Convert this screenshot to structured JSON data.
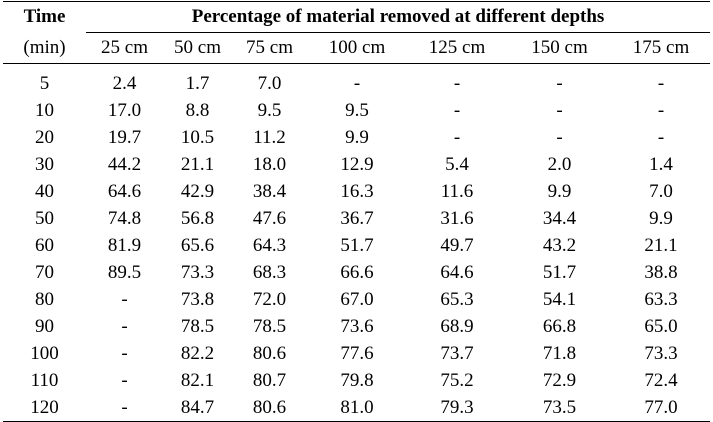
{
  "table": {
    "time_header": "Time",
    "time_unit": "(min)",
    "group_header": "Percentage of material removed at different depths",
    "depths": [
      "25 cm",
      "50 cm",
      "75 cm",
      "100 cm",
      "125 cm",
      "150 cm",
      "175 cm"
    ],
    "rows": [
      {
        "time": "5",
        "values": [
          "2.4",
          "1.7",
          "7.0",
          "-",
          "-",
          "-",
          "-"
        ]
      },
      {
        "time": "10",
        "values": [
          "17.0",
          "8.8",
          "9.5",
          "9.5",
          "-",
          "-",
          "-"
        ]
      },
      {
        "time": "20",
        "values": [
          "19.7",
          "10.5",
          "11.2",
          "9.9",
          "-",
          "-",
          "-"
        ]
      },
      {
        "time": "30",
        "values": [
          "44.2",
          "21.1",
          "18.0",
          "12.9",
          "5.4",
          "2.0",
          "1.4"
        ]
      },
      {
        "time": "40",
        "values": [
          "64.6",
          "42.9",
          "38.4",
          "16.3",
          "11.6",
          "9.9",
          "7.0"
        ]
      },
      {
        "time": "50",
        "values": [
          "74.8",
          "56.8",
          "47.6",
          "36.7",
          "31.6",
          "34.4",
          "9.9"
        ]
      },
      {
        "time": "60",
        "values": [
          "81.9",
          "65.6",
          "64.3",
          "51.7",
          "49.7",
          "43.2",
          "21.1"
        ]
      },
      {
        "time": "70",
        "values": [
          "89.5",
          "73.3",
          "68.3",
          "66.6",
          "64.6",
          "51.7",
          "38.8"
        ]
      },
      {
        "time": "80",
        "values": [
          "-",
          "73.8",
          "72.0",
          "67.0",
          "65.3",
          "54.1",
          "63.3"
        ]
      },
      {
        "time": "90",
        "values": [
          "-",
          "78.5",
          "78.5",
          "73.6",
          "68.9",
          "66.8",
          "65.0"
        ]
      },
      {
        "time": "100",
        "values": [
          "-",
          "82.2",
          "80.6",
          "77.6",
          "73.7",
          "71.8",
          "73.3"
        ]
      },
      {
        "time": "110",
        "values": [
          "-",
          "82.1",
          "80.7",
          "79.8",
          "75.2",
          "72.9",
          "72.4"
        ]
      },
      {
        "time": "120",
        "values": [
          "-",
          "84.7",
          "80.6",
          "81.0",
          "79.3",
          "73.5",
          "77.0"
        ]
      }
    ]
  }
}
